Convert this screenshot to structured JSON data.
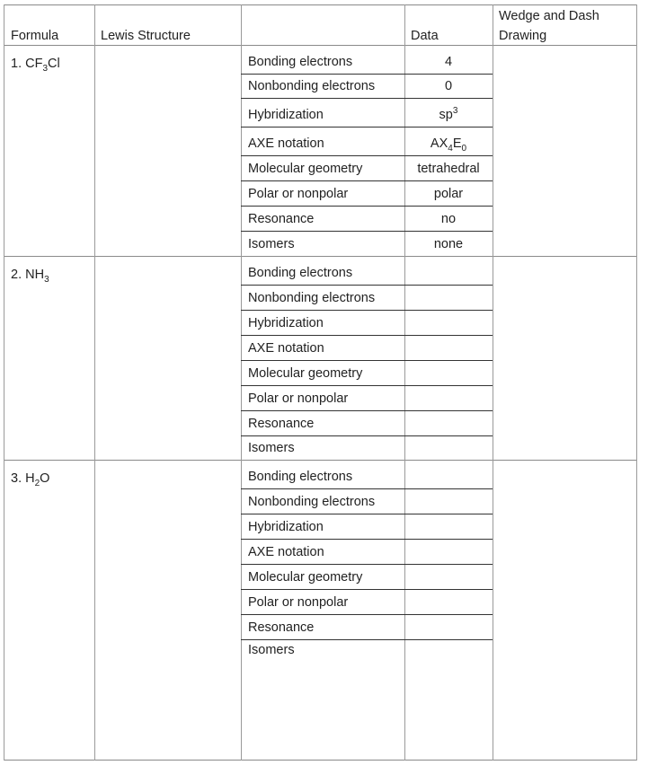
{
  "headers": {
    "formula": "Formula",
    "lewis": "Lewis Structure",
    "property": "",
    "data": "Data",
    "wedge_line1": "Wedge and Dash",
    "wedge_line2": "Drawing"
  },
  "property_labels": [
    "Bonding electrons",
    "Nonbonding electrons",
    "Hybridization",
    "AXE notation",
    "Molecular geometry",
    "Polar or nonpolar",
    "Resonance",
    "Isomers"
  ],
  "molecules": [
    {
      "number": "1.",
      "formula": {
        "pre": "CF",
        "sub": "3",
        "post": "Cl"
      },
      "data": [
        {
          "text": "4"
        },
        {
          "text": "0"
        },
        {
          "text": "sp",
          "sup": "3"
        },
        {
          "text": "AX",
          "sub": "4",
          "text2": "E",
          "sub2": "0"
        },
        {
          "text": "tetrahedral"
        },
        {
          "text": "polar"
        },
        {
          "text": "no"
        },
        {
          "text": "none"
        }
      ]
    },
    {
      "number": "2.",
      "formula": {
        "pre": "NH",
        "sub": "3",
        "post": ""
      },
      "data": []
    },
    {
      "number": "3.",
      "formula": {
        "pre": "H",
        "sub": "2",
        "post": "O"
      },
      "data": []
    }
  ]
}
